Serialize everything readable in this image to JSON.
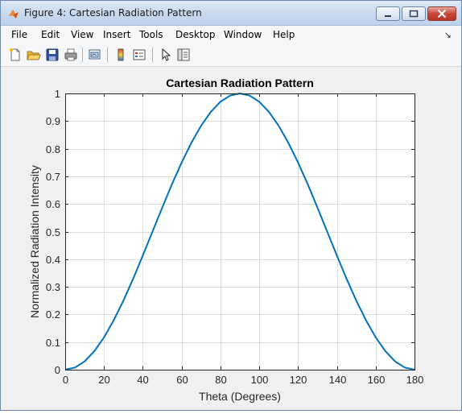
{
  "window": {
    "title": "Figure 4: Cartesian Radiation Pattern",
    "buttons": [
      "minimize-icon",
      "maximize-icon",
      "close-icon"
    ]
  },
  "menu": {
    "items": [
      "File",
      "Edit",
      "View",
      "Insert",
      "Tools",
      "Desktop",
      "Window",
      "Help"
    ],
    "overflow_icon": "dock-arrow-icon"
  },
  "toolbar": {
    "icons": [
      "new-figure-icon",
      "open-file-icon",
      "save-icon",
      "print-icon",
      "link-plot-icon",
      "colorbar-icon",
      "legend-icon",
      "edit-plot-arrow-icon",
      "property-editor-icon"
    ]
  },
  "chart_data": {
    "type": "line",
    "title": "Cartesian Radiation Pattern",
    "xlabel": "Theta (Degrees)",
    "ylabel": "Normalized Radiation Intensity",
    "xlim": [
      0,
      180
    ],
    "ylim": [
      0,
      1
    ],
    "xticks": [
      0,
      20,
      40,
      60,
      80,
      100,
      120,
      140,
      160,
      180
    ],
    "yticks": [
      0,
      0.1,
      0.2,
      0.3,
      0.4,
      0.5,
      0.6,
      0.7,
      0.8,
      0.9,
      1
    ],
    "grid": true,
    "line_color": "#0072bd",
    "series": [
      {
        "x": [
          0,
          5,
          10,
          15,
          20,
          25,
          30,
          35,
          40,
          45,
          50,
          55,
          60,
          65,
          70,
          75,
          80,
          85,
          90,
          95,
          100,
          105,
          110,
          115,
          120,
          125,
          130,
          135,
          140,
          145,
          150,
          155,
          160,
          165,
          170,
          175,
          180
        ],
        "y": [
          0,
          0.008,
          0.03,
          0.067,
          0.117,
          0.179,
          0.25,
          0.329,
          0.413,
          0.5,
          0.587,
          0.671,
          0.75,
          0.821,
          0.883,
          0.933,
          0.97,
          0.992,
          1,
          0.992,
          0.97,
          0.933,
          0.883,
          0.821,
          0.75,
          0.671,
          0.587,
          0.5,
          0.413,
          0.329,
          0.25,
          0.179,
          0.117,
          0.067,
          0.03,
          0.008,
          0
        ]
      }
    ]
  }
}
